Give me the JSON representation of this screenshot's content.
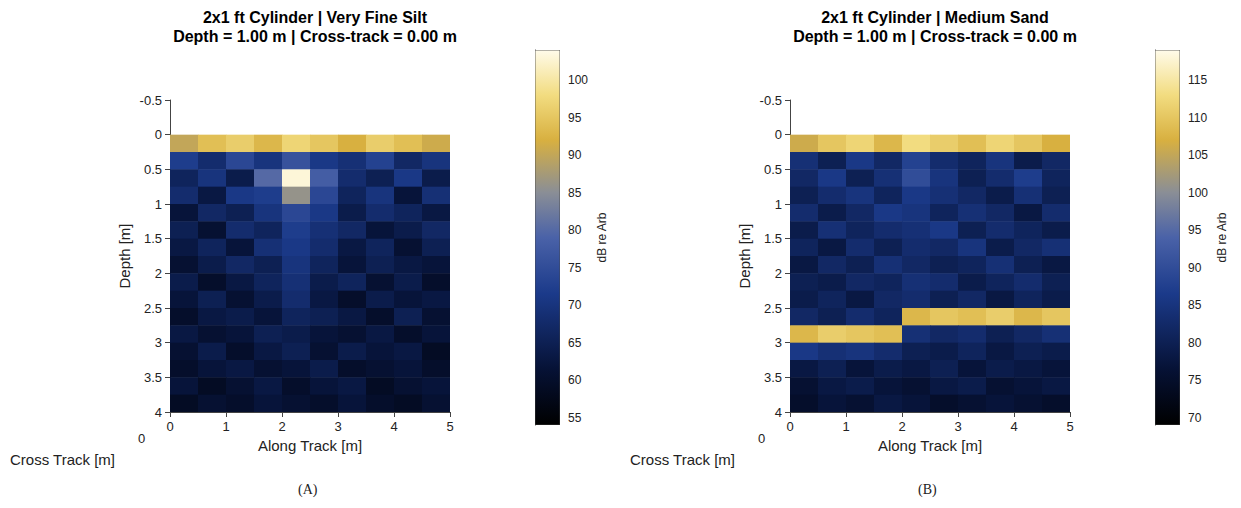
{
  "chart_data": [
    {
      "type": "heatmap",
      "title": "2x1 ft Cylinder | Very Fine Silt",
      "subtitle": "Depth = 1.00 m | Cross-track = 0.00 m",
      "panel_label": "(A)",
      "xlabel": "Along Track [m]",
      "ylabel": "Depth [m]",
      "zlabel": "Cross Track [m]",
      "zticks": [
        0
      ],
      "xlim": [
        0,
        5
      ],
      "xticks": [
        0,
        1,
        2,
        3,
        4,
        5
      ],
      "ylim": [
        -0.5,
        4
      ],
      "yticks": [
        -0.5,
        0,
        0.5,
        1,
        1.5,
        2,
        2.5,
        3,
        3.5,
        4
      ],
      "grid": false,
      "cells": {
        "x_edges": [
          0,
          0.5,
          1,
          1.5,
          2,
          2.5,
          3,
          3.5,
          4,
          4.5,
          5
        ],
        "y_edges": [
          -0.5,
          -0.25,
          0,
          0.25,
          0.5,
          0.75,
          1,
          1.25,
          1.5,
          1.75,
          2,
          2.25,
          2.5,
          2.75,
          3,
          3.25,
          3.5,
          3.75,
          4
        ],
        "values": [
          [
            null,
            null,
            null,
            null,
            null,
            null,
            null,
            null,
            null,
            null
          ],
          [
            null,
            null,
            null,
            null,
            null,
            null,
            null,
            null,
            null,
            null
          ],
          [
            90,
            94,
            96,
            93,
            97,
            95,
            92,
            96,
            94,
            91
          ],
          [
            72,
            68,
            74,
            70,
            76,
            71,
            69,
            73,
            67,
            70
          ],
          [
            66,
            70,
            64,
            80,
            103,
            78,
            68,
            65,
            71,
            64
          ],
          [
            68,
            63,
            71,
            72,
            86,
            74,
            66,
            70,
            62,
            69
          ],
          [
            62,
            67,
            65,
            70,
            74,
            71,
            64,
            68,
            66,
            63
          ],
          [
            65,
            61,
            68,
            66,
            72,
            69,
            67,
            62,
            64,
            67
          ],
          [
            63,
            66,
            62,
            69,
            71,
            68,
            63,
            66,
            61,
            65
          ],
          [
            61,
            64,
            67,
            65,
            70,
            66,
            62,
            65,
            63,
            62
          ],
          [
            64,
            60,
            63,
            66,
            69,
            64,
            66,
            61,
            64,
            60
          ],
          [
            62,
            65,
            61,
            64,
            68,
            63,
            60,
            64,
            62,
            63
          ],
          [
            60,
            63,
            64,
            62,
            66,
            65,
            63,
            60,
            65,
            61
          ],
          [
            63,
            61,
            62,
            65,
            64,
            62,
            61,
            63,
            60,
            62
          ],
          [
            61,
            64,
            60,
            63,
            65,
            61,
            64,
            62,
            63,
            59
          ],
          [
            60,
            62,
            63,
            61,
            62,
            64,
            60,
            61,
            62,
            60
          ],
          [
            62,
            59,
            61,
            63,
            60,
            62,
            63,
            59,
            61,
            62
          ],
          [
            59,
            61,
            60,
            62,
            61,
            60,
            62,
            60,
            59,
            61
          ]
        ]
      },
      "colorbar": {
        "label": "dB re Arb",
        "range": [
          54,
          104
        ],
        "ticks": [
          55,
          60,
          65,
          70,
          75,
          80,
          85,
          90,
          95,
          100
        ]
      }
    },
    {
      "type": "heatmap",
      "title": "2x1 ft Cylinder | Medium Sand",
      "subtitle": "Depth = 1.00 m | Cross-track = 0.00 m",
      "panel_label": "(B)",
      "xlabel": "Along Track [m]",
      "ylabel": "Depth [m]",
      "zlabel": "Cross Track [m]",
      "zticks": [
        0
      ],
      "xlim": [
        0,
        5
      ],
      "xticks": [
        0,
        1,
        2,
        3,
        4,
        5
      ],
      "ylim": [
        -0.5,
        4
      ],
      "yticks": [
        -0.5,
        0,
        0.5,
        1,
        1.5,
        2,
        2.5,
        3,
        3.5,
        4
      ],
      "grid": false,
      "cells": {
        "x_edges": [
          0,
          0.5,
          1,
          1.5,
          2,
          2.5,
          3,
          3.5,
          4,
          4.5,
          5
        ],
        "y_edges": [
          -0.5,
          -0.25,
          0,
          0.25,
          0.5,
          0.75,
          1,
          1.25,
          1.5,
          1.75,
          2,
          2.25,
          2.5,
          2.75,
          3,
          3.25,
          3.5,
          3.75,
          4
        ],
        "values": [
          [
            null,
            null,
            null,
            null,
            null,
            null,
            null,
            null,
            null,
            null
          ],
          [
            null,
            null,
            null,
            null,
            null,
            null,
            null,
            null,
            null,
            null
          ],
          [
            106,
            110,
            112,
            108,
            113,
            111,
            109,
            112,
            110,
            107
          ],
          [
            84,
            80,
            86,
            82,
            88,
            83,
            81,
            85,
            79,
            82
          ],
          [
            82,
            86,
            80,
            84,
            90,
            85,
            80,
            83,
            87,
            81
          ],
          [
            80,
            83,
            85,
            81,
            86,
            84,
            82,
            79,
            84,
            80
          ],
          [
            83,
            79,
            82,
            86,
            85,
            81,
            84,
            82,
            78,
            83
          ],
          [
            79,
            84,
            81,
            83,
            84,
            86,
            80,
            83,
            81,
            79
          ],
          [
            81,
            78,
            83,
            80,
            83,
            82,
            85,
            79,
            82,
            84
          ],
          [
            78,
            82,
            80,
            84,
            82,
            80,
            81,
            84,
            80,
            78
          ],
          [
            80,
            79,
            82,
            81,
            84,
            83,
            79,
            81,
            83,
            80
          ],
          [
            79,
            81,
            78,
            82,
            83,
            80,
            82,
            78,
            81,
            79
          ],
          [
            82,
            80,
            83,
            81,
            108,
            110,
            109,
            111,
            108,
            110
          ],
          [
            108,
            111,
            110,
            109,
            84,
            82,
            83,
            80,
            82,
            84
          ],
          [
            86,
            84,
            85,
            83,
            80,
            79,
            81,
            78,
            80,
            79
          ],
          [
            78,
            80,
            77,
            79,
            78,
            80,
            77,
            79,
            78,
            77
          ],
          [
            76,
            78,
            79,
            77,
            76,
            78,
            79,
            76,
            77,
            78
          ],
          [
            75,
            77,
            76,
            78,
            77,
            75,
            76,
            77,
            76,
            75
          ]
        ]
      },
      "colorbar": {
        "label": "dB re Arb",
        "range": [
          69,
          119
        ],
        "ticks": [
          70,
          75,
          80,
          85,
          90,
          95,
          100,
          105,
          110,
          115
        ]
      }
    }
  ]
}
